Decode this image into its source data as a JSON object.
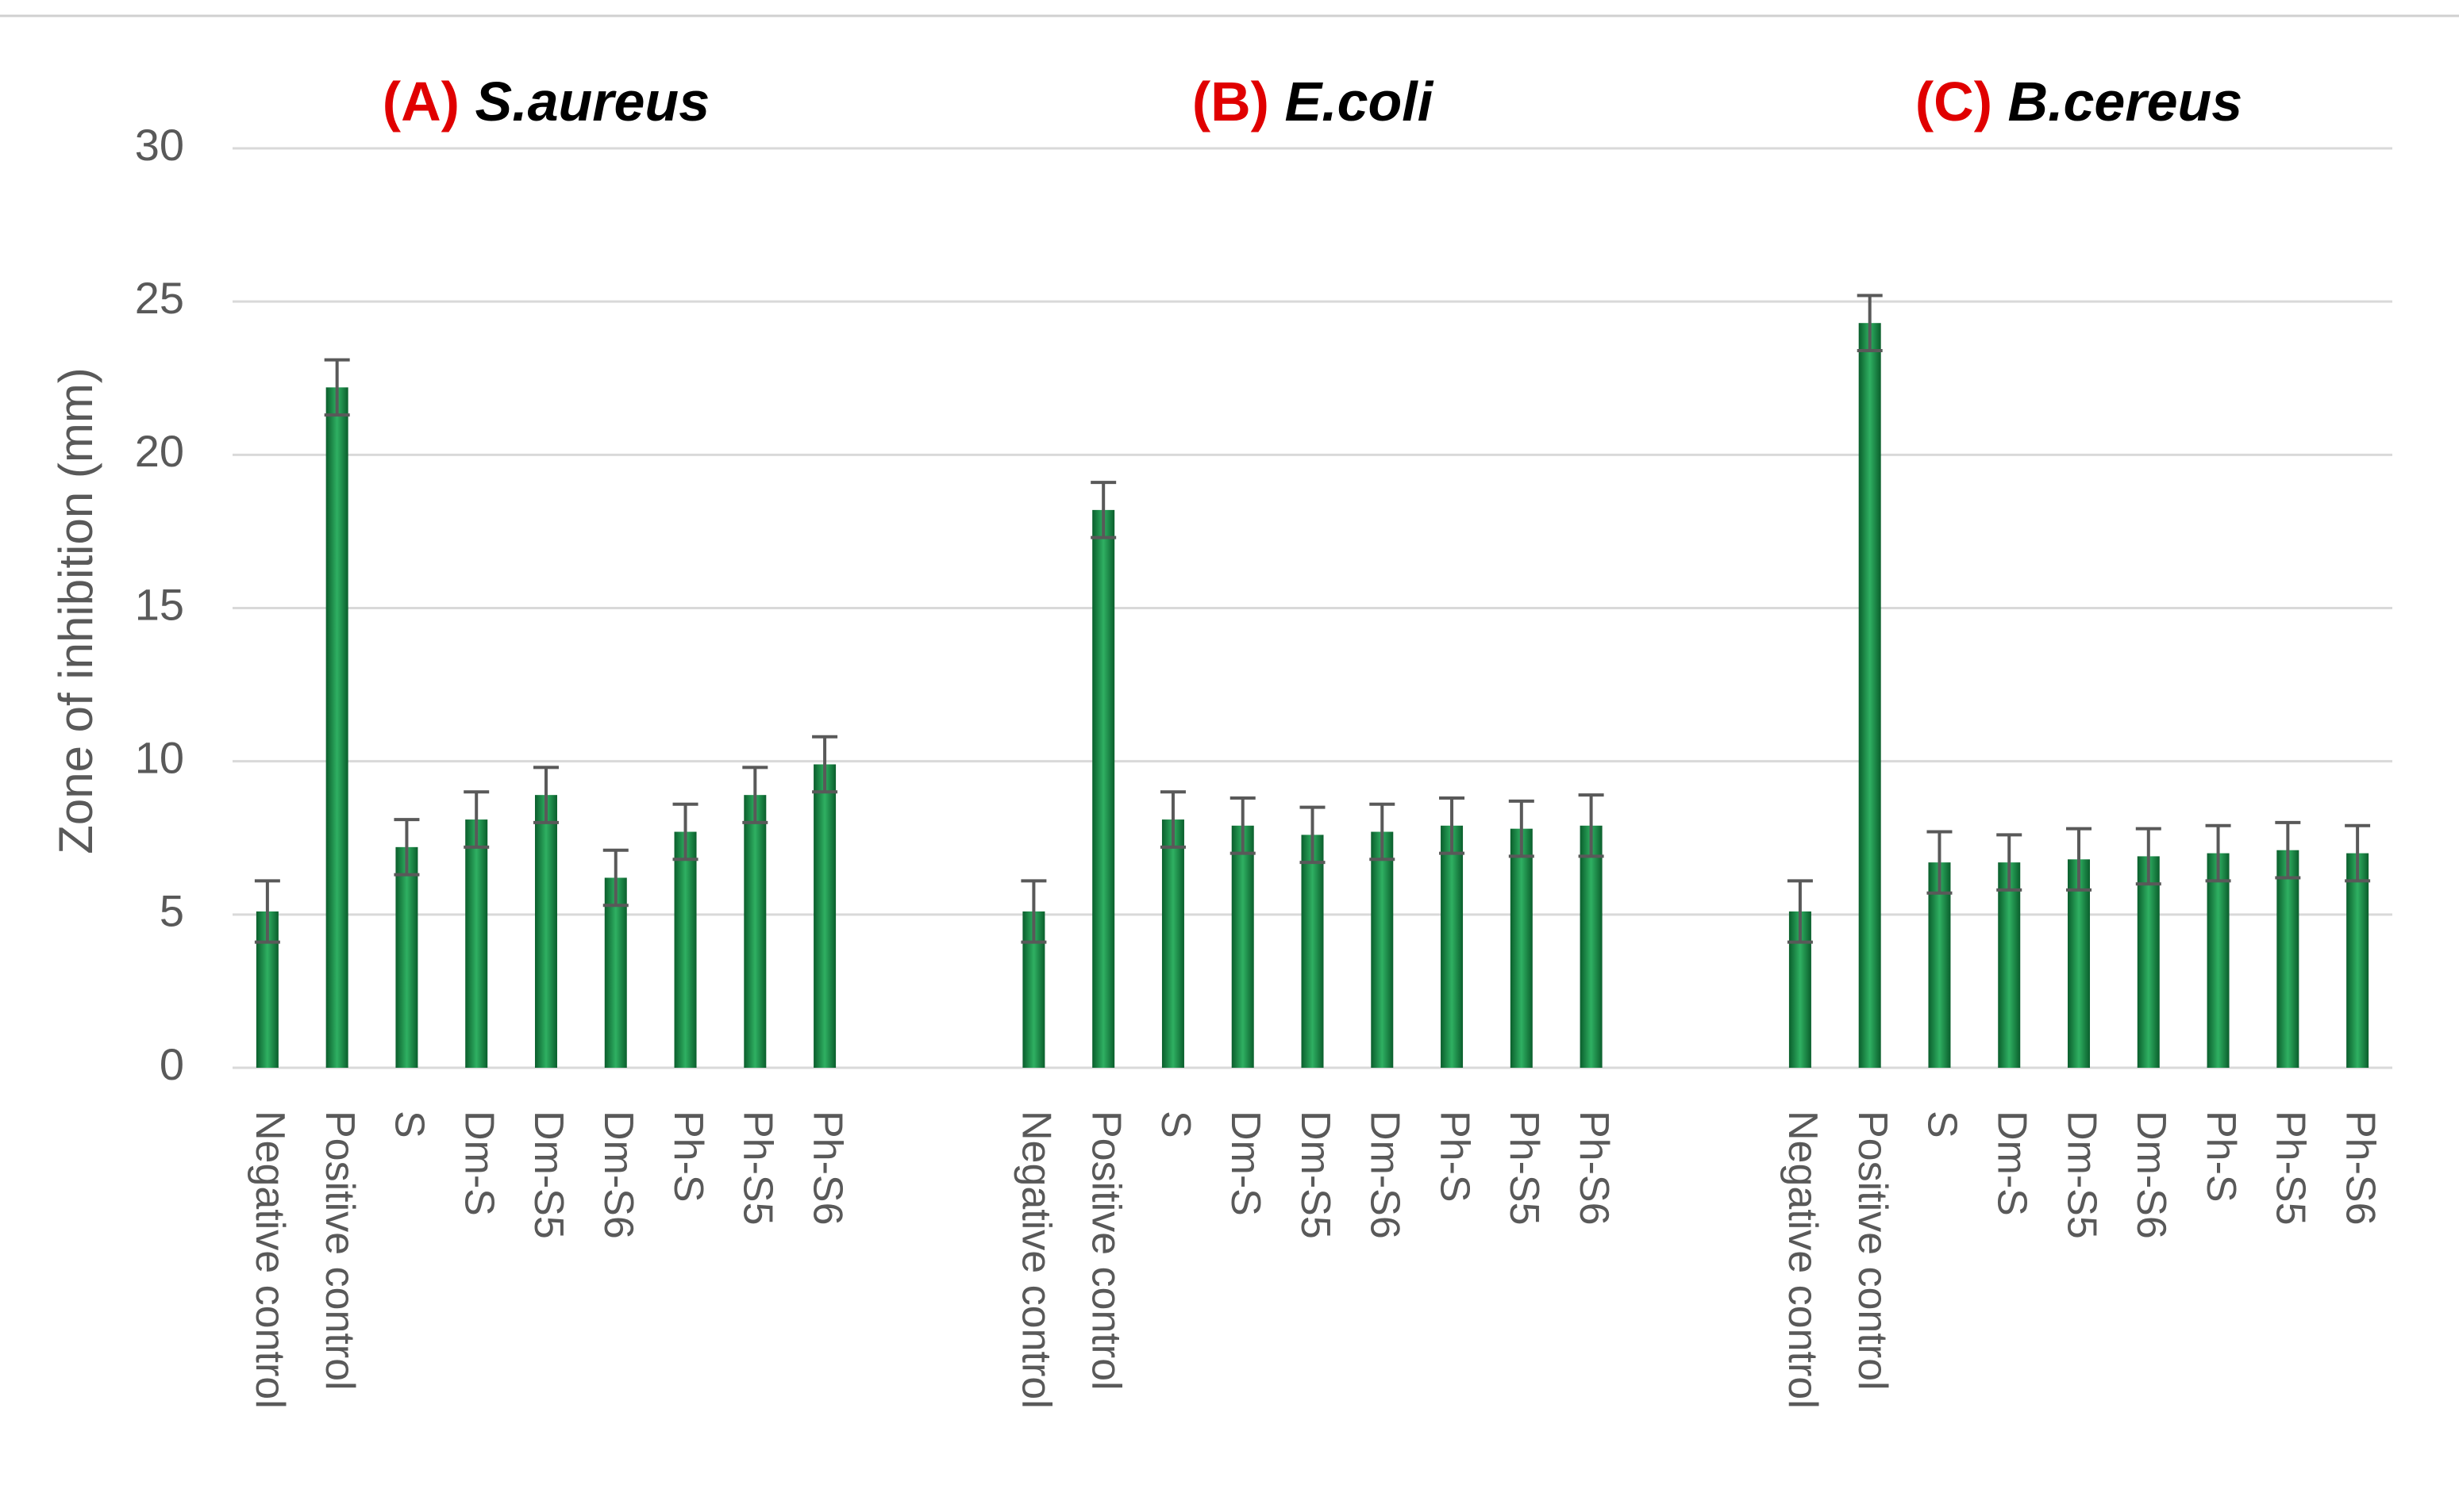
{
  "chart_data": {
    "type": "bar",
    "y_label": "Zone of inhibition (mm)",
    "ylim": [
      0,
      30
    ],
    "yticks": [
      0,
      5,
      10,
      15,
      20,
      25,
      30
    ],
    "grid": true,
    "color": "#1a8a45",
    "categories": [
      "Negative control",
      "Positive control",
      "S",
      "Dm-S",
      "Dm-S5",
      "Dm-S6",
      "Ph-S",
      "Ph-S5",
      "Ph-S6"
    ],
    "groups": [
      {
        "tag": "(A)",
        "name": "S.aureus",
        "values": [
          5.1,
          22.2,
          7.2,
          8.1,
          8.9,
          6.2,
          7.7,
          8.9,
          9.9
        ],
        "errors": [
          1.0,
          0.9,
          0.9,
          0.9,
          0.9,
          0.9,
          0.9,
          0.9,
          0.9
        ]
      },
      {
        "tag": "(B)",
        "name": "E.coli",
        "values": [
          5.1,
          18.2,
          8.1,
          7.9,
          7.6,
          7.7,
          7.9,
          7.8,
          7.9
        ],
        "errors": [
          1.0,
          0.9,
          0.9,
          0.9,
          0.9,
          0.9,
          0.9,
          0.9,
          1.0
        ]
      },
      {
        "tag": "(C)",
        "name": "B.cereus",
        "values": [
          5.1,
          24.3,
          6.7,
          6.7,
          6.8,
          6.9,
          7.0,
          7.1,
          7.0
        ],
        "errors": [
          1.0,
          0.9,
          1.0,
          0.9,
          1.0,
          0.9,
          0.9,
          0.9,
          0.9
        ]
      }
    ]
  }
}
